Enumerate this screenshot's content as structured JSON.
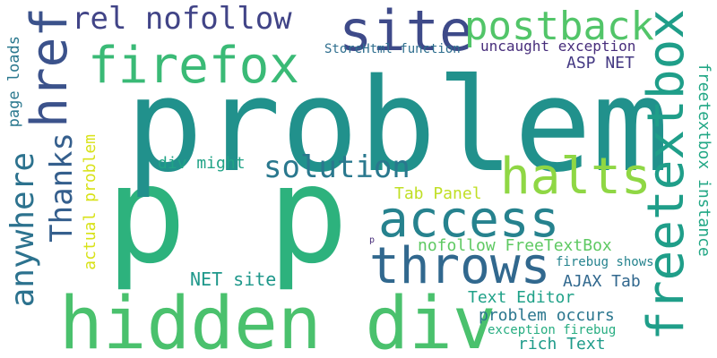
{
  "words": [
    {
      "id": "w-p-p",
      "text": "p p",
      "color": "#2db27d"
    },
    {
      "id": "w-problem",
      "text": "problem",
      "color": "#21918c"
    },
    {
      "id": "w-hidden-div",
      "text": "hidden div",
      "color": "#4ac16d"
    },
    {
      "id": "w-site",
      "text": "site",
      "color": "#3e4a89"
    },
    {
      "id": "w-href",
      "text": "href",
      "color": "#3b528b"
    },
    {
      "id": "w-freetextbox",
      "text": "freetextbox",
      "color": "#1f9e89"
    },
    {
      "id": "w-throws",
      "text": "throws",
      "color": "#31688e"
    },
    {
      "id": "w-access",
      "text": "access",
      "color": "#26828e"
    },
    {
      "id": "w-firefox",
      "text": "firefox",
      "color": "#3aba76"
    },
    {
      "id": "w-halts",
      "text": "halts",
      "color": "#8fd744"
    },
    {
      "id": "w-postback",
      "text": "postback",
      "color": "#52c569"
    },
    {
      "id": "w-rel-nofollow",
      "text": "rel nofollow",
      "color": "#414487"
    },
    {
      "id": "w-solution",
      "text": "solution",
      "color": "#2a788e"
    },
    {
      "id": "w-anywhere",
      "text": "anywhere",
      "color": "#2c728e"
    },
    {
      "id": "w-thanks",
      "text": "Thanks",
      "color": "#355f8d"
    },
    {
      "id": "w-uncaught-exception",
      "text": "uncaught exception",
      "color": "#472d7b"
    },
    {
      "id": "w-asp-net",
      "text": "ASP NET",
      "color": "#443983"
    },
    {
      "id": "w-storehtml-function",
      "text": "StoreHtml function",
      "color": "#2e6e8e"
    },
    {
      "id": "w-page-loads",
      "text": "page loads",
      "color": "#2a788e"
    },
    {
      "id": "w-freetextbox-instance",
      "text": "freetextbox instance",
      "color": "#22a785"
    },
    {
      "id": "w-div-might",
      "text": "div might",
      "color": "#20a386"
    },
    {
      "id": "w-actual-problem",
      "text": "actual problem",
      "color": "#d8e219"
    },
    {
      "id": "w-tab-panel",
      "text": "Tab Panel",
      "color": "#c0df25"
    },
    {
      "id": "w-nofollow-freetextbox",
      "text": "nofollow FreeTextBox",
      "color": "#5ec962"
    },
    {
      "id": "w-p-small",
      "text": "p",
      "color": "#472c7a"
    },
    {
      "id": "w-firebug-shows",
      "text": "firebug shows",
      "color": "#25838e"
    },
    {
      "id": "w-net-site",
      "text": "NET site",
      "color": "#1f988b"
    },
    {
      "id": "w-ajax-tab",
      "text": "AJAX Tab",
      "color": "#31688e"
    },
    {
      "id": "w-text-editor",
      "text": "Text Editor",
      "color": "#1fa188"
    },
    {
      "id": "w-problem-occurs",
      "text": "problem occurs",
      "color": "#2a768e"
    },
    {
      "id": "w-exception-firebug",
      "text": "exception firebug",
      "color": "#27ad81"
    },
    {
      "id": "w-rich-text",
      "text": "rich Text",
      "color": "#1e9b8a"
    }
  ]
}
